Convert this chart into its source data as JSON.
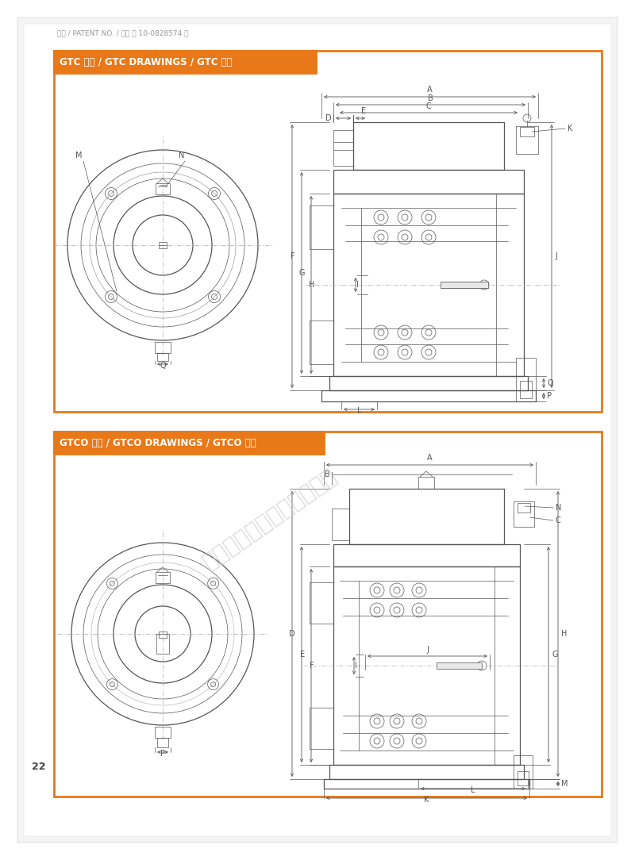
{
  "bg_color": "#ffffff",
  "light_bg": "#f4f4f4",
  "orange_color": "#e87818",
  "line_color": "#555555",
  "dim_color": "#555555",
  "patent_text": "특허 / PATENT NO. / 专利 제 10-0828574 호",
  "patent_fontsize": 6.5,
  "page_number": "22",
  "watermark_text": "上海韩东机械科技有限公司",
  "section1_title": "GTC 도면 / GTC DRAWINGS / GTC 图纸",
  "section2_title": "GTCO 도면 / GTCO DRAWINGS / GTCO 图纸",
  "title_fontsize": 8.5,
  "label_fontsize": 7
}
